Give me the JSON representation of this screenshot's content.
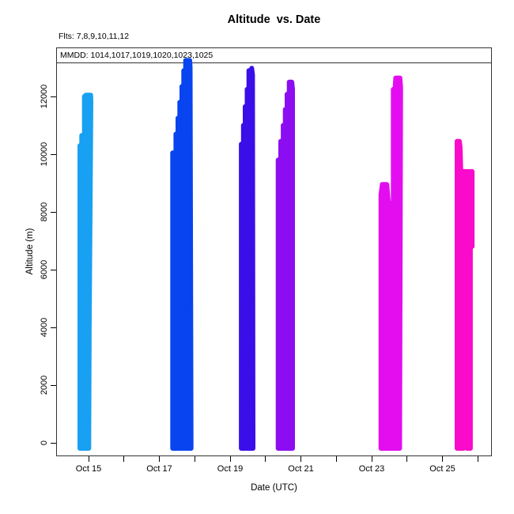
{
  "title": "Altitude  vs. Date",
  "flights_note": "Flts: 7,8,9,10,11,12",
  "legend_note": "MMDD: 1014,1017,1019,1020,1023,1025",
  "chart_data": {
    "type": "scatter",
    "title": "Altitude  vs. Date",
    "xlabel": "Date (UTC)",
    "ylabel": "Altitude (m)",
    "ylim": [
      0,
      13700
    ],
    "x_unit": "day of October (UTC)",
    "xlim": [
      14.1,
      26.4
    ],
    "grid": false,
    "legend_position": "top-left-inside",
    "x_axis": {
      "ticks": [
        {
          "day": 15,
          "label": "Oct 15"
        },
        {
          "day": 16
        },
        {
          "day": 17,
          "label": "Oct 17"
        },
        {
          "day": 18
        },
        {
          "day": 19,
          "label": "Oct 19"
        },
        {
          "day": 20
        },
        {
          "day": 21,
          "label": "Oct 21"
        },
        {
          "day": 22
        },
        {
          "day": 23,
          "label": "Oct 23"
        },
        {
          "day": 24
        },
        {
          "day": 25,
          "label": "Oct 25"
        },
        {
          "day": 26
        }
      ]
    },
    "y_axis": {
      "ticks": [
        {
          "value": 0,
          "label": "0"
        },
        {
          "value": 2000,
          "label": "2000"
        },
        {
          "value": 4000,
          "label": "4000"
        },
        {
          "value": 6000,
          "label": "6000"
        },
        {
          "value": 8000,
          "label": "8000"
        },
        {
          "value": 10000,
          "label": "10000"
        },
        {
          "value": 12000,
          "label": "12000"
        }
      ]
    },
    "flights": [
      {
        "flight": 7,
        "mmdd": "1014",
        "color": "#18A0F2",
        "peak_altitude_m": 12050,
        "outline": [
          [
            14.754,
            0
          ],
          [
            14.754,
            10300
          ],
          [
            14.806,
            10300
          ],
          [
            14.806,
            10650
          ],
          [
            14.882,
            10650
          ],
          [
            14.882,
            12000
          ],
          [
            14.93,
            12050
          ],
          [
            15.06,
            12050
          ],
          [
            15.067,
            11800
          ],
          [
            15.02,
            4000
          ],
          [
            15.007,
            0
          ]
        ]
      },
      {
        "flight": 8,
        "mmdd": "1017",
        "color": "#0844F0",
        "peak_altitude_m": 13250,
        "outline": [
          [
            17.375,
            0
          ],
          [
            17.375,
            10050
          ],
          [
            17.466,
            10050
          ],
          [
            17.466,
            10700
          ],
          [
            17.526,
            10700
          ],
          [
            17.526,
            11250
          ],
          [
            17.577,
            11250
          ],
          [
            17.577,
            11800
          ],
          [
            17.637,
            11800
          ],
          [
            17.637,
            12350
          ],
          [
            17.689,
            12350
          ],
          [
            17.689,
            12900
          ],
          [
            17.742,
            12900
          ],
          [
            17.742,
            13250
          ],
          [
            17.86,
            13250
          ],
          [
            17.872,
            13000
          ],
          [
            17.898,
            0
          ]
        ]
      },
      {
        "flight": 9,
        "mmdd": "1019",
        "color": "#3A0EE8",
        "peak_altitude_m": 12980,
        "outline": [
          [
            19.315,
            0
          ],
          [
            19.315,
            10350
          ],
          [
            19.375,
            10350
          ],
          [
            19.375,
            11000
          ],
          [
            19.425,
            11000
          ],
          [
            19.425,
            11650
          ],
          [
            19.48,
            11650
          ],
          [
            19.48,
            12250
          ],
          [
            19.53,
            12250
          ],
          [
            19.53,
            12900
          ],
          [
            19.6,
            12900
          ],
          [
            19.61,
            12980
          ],
          [
            19.635,
            12750
          ],
          [
            19.648,
            0
          ]
        ]
      },
      {
        "flight": 10,
        "mmdd": "1020",
        "color": "#8C0DF2",
        "peak_altitude_m": 12500,
        "outline": [
          [
            20.356,
            0
          ],
          [
            20.356,
            9800
          ],
          [
            20.43,
            9800
          ],
          [
            20.43,
            10450
          ],
          [
            20.5,
            10450
          ],
          [
            20.5,
            11000
          ],
          [
            20.558,
            11000
          ],
          [
            20.558,
            11550
          ],
          [
            20.61,
            11550
          ],
          [
            20.61,
            12080
          ],
          [
            20.67,
            12080
          ],
          [
            20.67,
            12500
          ],
          [
            20.745,
            12500
          ],
          [
            20.765,
            12250
          ],
          [
            20.765,
            0
          ]
        ]
      },
      {
        "flight": 11,
        "mmdd": "1023",
        "color": "#E30DF0",
        "peak_altitude_m": 12640,
        "outline": [
          [
            23.262,
            0
          ],
          [
            23.262,
            8600
          ],
          [
            23.3,
            8950
          ],
          [
            23.43,
            8950
          ],
          [
            23.475,
            8300
          ],
          [
            23.61,
            8300
          ],
          [
            23.61,
            12250
          ],
          [
            23.66,
            12250
          ],
          [
            23.68,
            12640
          ],
          [
            23.8,
            12640
          ],
          [
            23.82,
            12300
          ],
          [
            23.79,
            0
          ]
        ]
      },
      {
        "flight": 12,
        "mmdd": "1025",
        "color": "#FA0ACA",
        "peak_altitude_m": 10450,
        "outline": [
          [
            25.414,
            0
          ],
          [
            25.414,
            10450
          ],
          [
            25.48,
            10450
          ],
          [
            25.5,
            10250
          ],
          [
            25.52,
            9400
          ],
          [
            25.84,
            9400
          ],
          [
            25.84,
            6800
          ],
          [
            25.79,
            6800
          ],
          [
            25.79,
            0
          ],
          [
            25.7,
            0
          ],
          [
            25.68,
            400
          ],
          [
            25.62,
            400
          ],
          [
            25.6,
            0
          ]
        ]
      }
    ]
  }
}
